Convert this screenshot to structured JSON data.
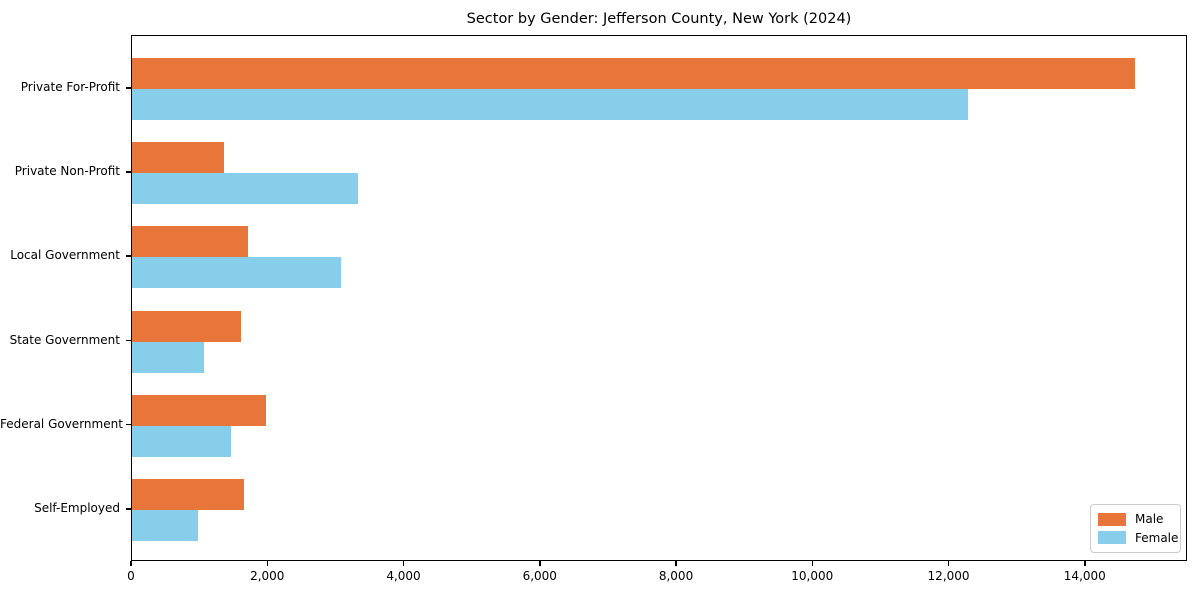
{
  "chart_data": {
    "type": "bar",
    "orientation": "horizontal",
    "title": "Sector by Gender: Jefferson County, New York (2024)",
    "xlabel": "",
    "ylabel": "",
    "categories": [
      "Private For-Profit",
      "Private Non-Profit",
      "Local Government",
      "State Government",
      "Federal Government",
      "Self-Employed"
    ],
    "series": [
      {
        "name": "Male",
        "color": "#e8763b",
        "values": [
          14720,
          1350,
          1700,
          1600,
          1960,
          1640
        ]
      },
      {
        "name": "Female",
        "color": "#87ceeb",
        "values": [
          12270,
          3310,
          3060,
          1050,
          1450,
          970
        ]
      }
    ],
    "xlim": [
      0,
      15500
    ],
    "xticks": {
      "values": [
        0,
        2000,
        4000,
        6000,
        8000,
        10000,
        12000,
        14000
      ],
      "labels": [
        "0",
        "2,000",
        "4,000",
        "6,000",
        "8,000",
        "10,000",
        "12,000",
        "14,000"
      ]
    },
    "grid": false,
    "legend_position": "lower right"
  },
  "legend": {
    "male_label": "Male",
    "female_label": "Female"
  }
}
